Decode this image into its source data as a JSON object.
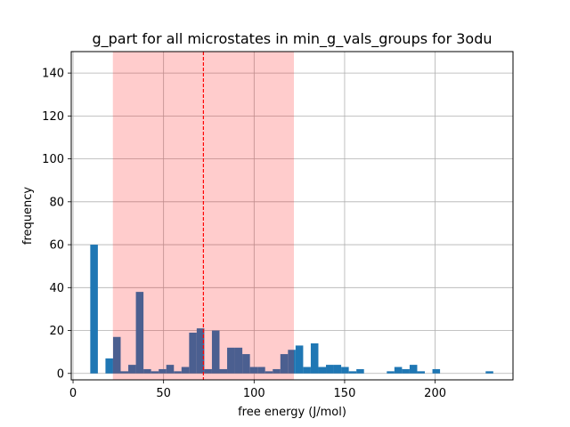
{
  "chart_data": {
    "type": "bar",
    "title": "g_part for all microstates in min_g_vals_groups for 3odu",
    "xlabel": "free energy (J/mol)",
    "ylabel": "frequency",
    "xlim": [
      -1,
      243
    ],
    "ylim": [
      -3,
      150
    ],
    "xticks": [
      0,
      50,
      100,
      150,
      200
    ],
    "yticks": [
      0,
      20,
      40,
      60,
      80,
      100,
      120,
      140
    ],
    "grid": true,
    "bin_width": 4.2,
    "bar_color": "#1f77b4",
    "shade_color": "#ff0000",
    "shade_alpha": 0.2,
    "vline_color": "#ff0000",
    "shaded_region": [
      22,
      122
    ],
    "mean_line": 72,
    "bin_starts": [
      9.5,
      17.9,
      22.1,
      26.3,
      30.5,
      34.7,
      38.9,
      43.1,
      47.3,
      51.5,
      55.7,
      59.9,
      64.1,
      68.3,
      72.5,
      76.7,
      80.9,
      85.1,
      89.3,
      93.5,
      97.7,
      101.9,
      106.1,
      110.3,
      114.5,
      118.7,
      122.9,
      127.1,
      131.3,
      135.5,
      139.7,
      143.9,
      148.1,
      152.3,
      156.5,
      173.3,
      177.5,
      181.7,
      185.9,
      190.1,
      198.5,
      227.9
    ],
    "values": [
      60,
      7,
      17,
      1,
      4,
      38,
      2,
      1,
      2,
      4,
      1,
      3,
      19,
      21,
      2,
      20,
      2,
      12,
      12,
      9,
      3,
      3,
      1,
      2,
      9,
      11,
      13,
      3,
      14,
      3,
      4,
      4,
      3,
      1,
      2,
      1,
      3,
      2,
      4,
      1,
      2,
      1
    ]
  }
}
